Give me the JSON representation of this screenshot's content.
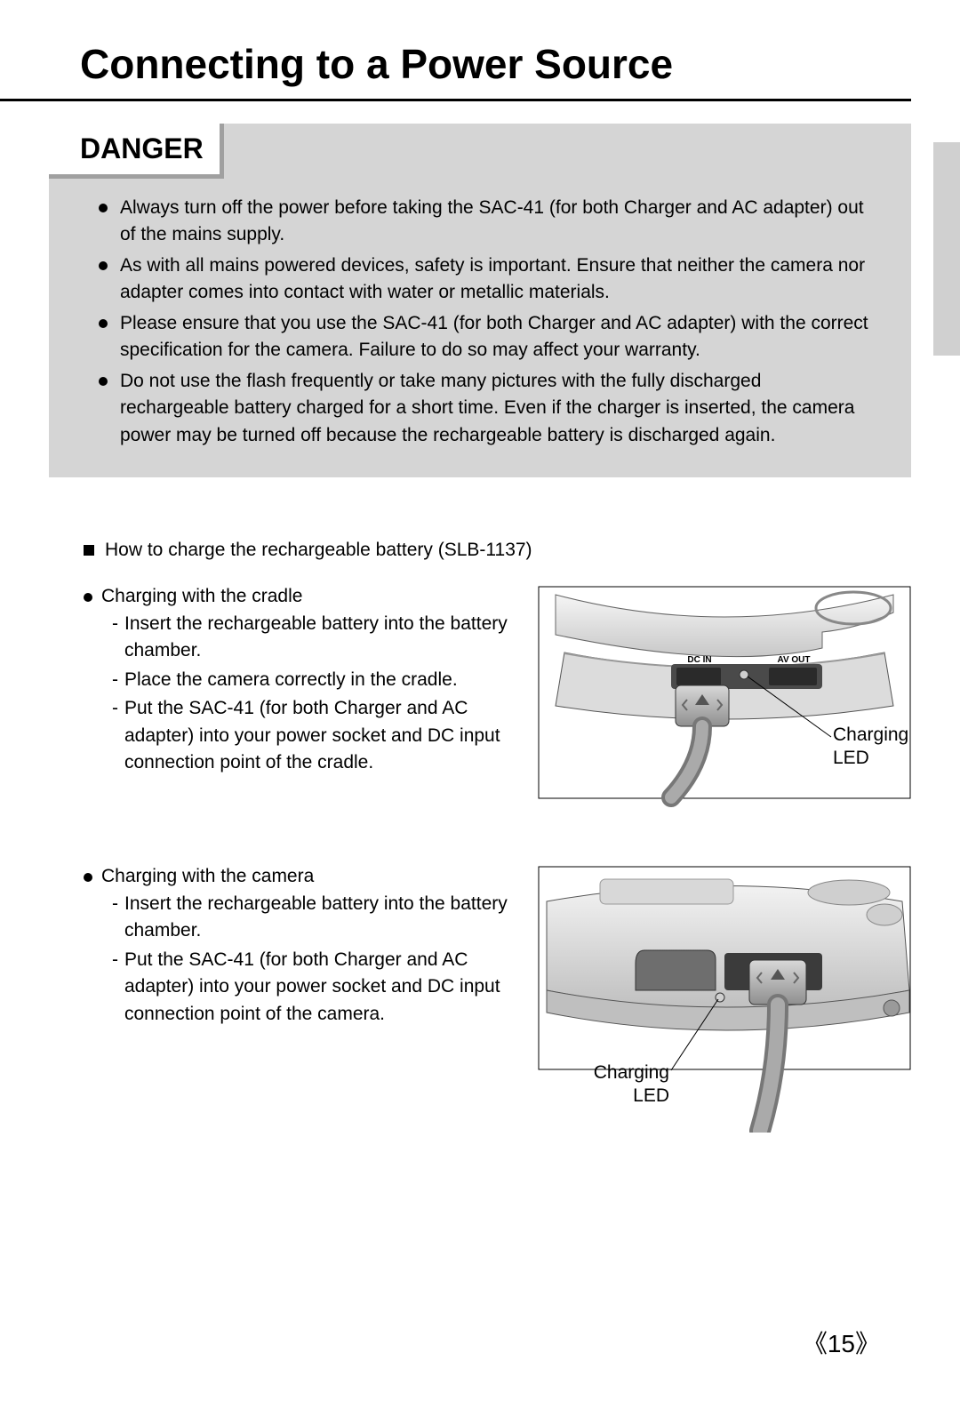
{
  "page": {
    "title": "Connecting to a Power Source",
    "number": "15"
  },
  "danger": {
    "heading": "DANGER",
    "bg_color": "#d5d5d5",
    "items": [
      "Always turn off the power before taking the SAC-41 (for both Charger and AC adapter) out of the mains supply.",
      "As with all mains powered devices, safety is important. Ensure that neither the camera nor adapter comes into contact with water or metallic materials.",
      "Please ensure that you use the SAC-41 (for both Charger and AC adapter) with the correct specification for the camera. Failure to do so may affect your warranty.",
      "Do not use the flash frequently or take many pictures with the fully discharged rechargeable battery charged for a short time. Even if the charger is inserted, the camera power may be turned off because the rechargeable battery is discharged again."
    ]
  },
  "howto": {
    "heading": "How to charge the rechargeable battery (SLB-1137)",
    "sections": [
      {
        "title": "Charging with the cradle",
        "steps": [
          "Insert the rechargeable battery into the battery chamber.",
          "Place the camera correctly in the cradle.",
          "Put the SAC-41 (for both Charger and AC adapter) into your power socket and DC input connection point of the cradle."
        ],
        "figure": {
          "label": "Charging LED",
          "port_labels": [
            "DC IN",
            "AV OUT"
          ],
          "colors": {
            "body": "#e6e6e6",
            "shadow": "#b5b5b5",
            "dark": "#7a7a7a",
            "line": "#000000"
          }
        }
      },
      {
        "title": "Charging with the camera",
        "steps": [
          "Insert the rechargeable battery into the battery chamber.",
          "Put the SAC-41 (for both Charger and AC adapter) into your power socket and DC input connection point of the camera."
        ],
        "figure": {
          "label": "Charging LED",
          "colors": {
            "body": "#e6e6e6",
            "shadow": "#b5b5b5",
            "dark": "#7a7a7a",
            "line": "#000000"
          }
        }
      }
    ]
  }
}
